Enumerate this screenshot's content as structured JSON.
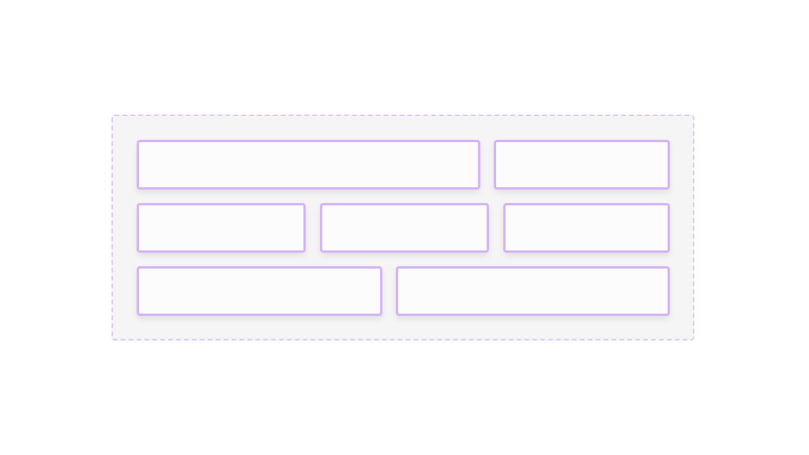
{
  "colors": {
    "container_border": "#e0c9fb",
    "container_background": "#f5f5f5",
    "box_border": "#d6b4f6",
    "box_background": "#fcfcfc"
  },
  "rows": [
    {
      "boxes": 2
    },
    {
      "boxes": 3
    },
    {
      "boxes": 2
    }
  ]
}
